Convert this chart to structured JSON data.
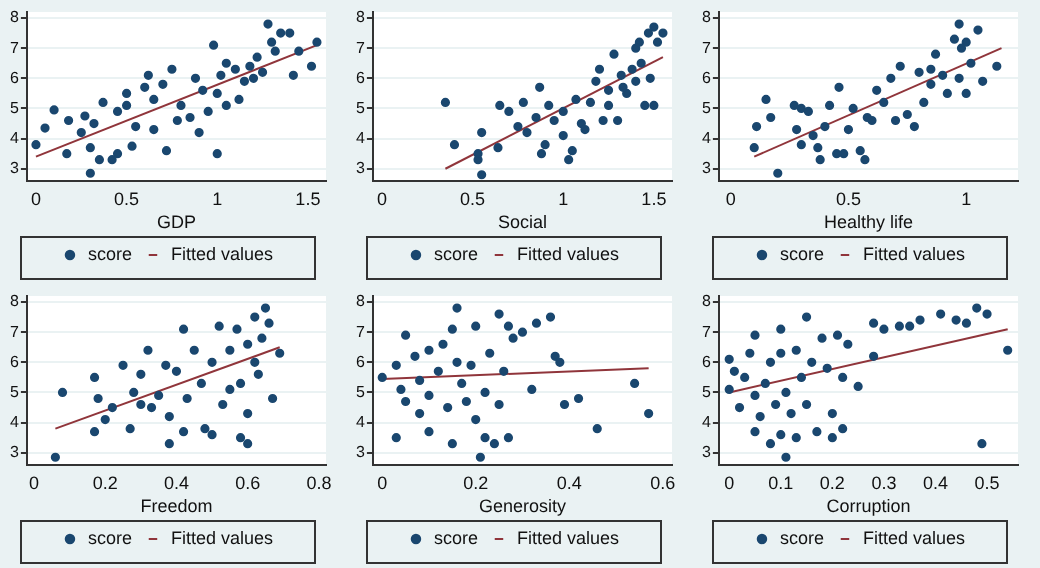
{
  "chart_data": [
    {
      "type": "scatter",
      "xlabel": "GDP",
      "xlim": [
        -0.05,
        1.6
      ],
      "xticks": [
        0,
        0.5,
        1,
        1.5
      ],
      "ylim": [
        2.6,
        8.2
      ],
      "yticks": [
        3,
        4,
        5,
        6,
        7,
        8
      ],
      "grid": "y",
      "legend": "bottom",
      "series": [
        {
          "name": "score",
          "type": "scatter",
          "marker": "circle",
          "color": "#1a476f",
          "x": [
            0,
            0.05,
            0.1,
            0.17,
            0.18,
            0.25,
            0.27,
            0.3,
            0.3,
            0.32,
            0.35,
            0.37,
            0.42,
            0.45,
            0.45,
            0.5,
            0.5,
            0.53,
            0.55,
            0.6,
            0.62,
            0.65,
            0.7,
            0.72,
            0.75,
            0.78,
            0.8,
            0.85,
            0.9,
            0.92,
            0.95,
            0.98,
            1.0,
            1.0,
            1.02,
            1.05,
            1.05,
            1.1,
            1.12,
            1.15,
            1.2,
            1.22,
            1.25,
            1.28,
            1.3,
            1.32,
            1.35,
            1.4,
            1.42,
            1.45,
            1.52,
            1.55,
            0.88,
            0.65,
            1.18
          ],
          "values": [
            3.8,
            4.35,
            4.95,
            3.5,
            4.6,
            4.2,
            4.75,
            2.85,
            3.7,
            4.5,
            3.3,
            5.2,
            3.3,
            3.5,
            4.9,
            5.5,
            5.1,
            3.75,
            4.4,
            5.7,
            6.1,
            4.3,
            5.8,
            3.6,
            6.3,
            4.6,
            5.1,
            4.7,
            4.2,
            5.6,
            4.9,
            7.1,
            3.5,
            5.5,
            6.1,
            6.5,
            5.1,
            6.3,
            5.3,
            5.9,
            6.0,
            6.7,
            6.2,
            7.8,
            7.2,
            6.9,
            7.5,
            7.5,
            6.1,
            6.9,
            6.4,
            7.2,
            6.0,
            5.3,
            6.4
          ]
        },
        {
          "name": "Fitted values",
          "type": "line",
          "color": "#90353b",
          "x": [
            0,
            1.55
          ],
          "values": [
            3.4,
            7.1
          ]
        }
      ]
    },
    {
      "type": "scatter",
      "xlabel": "Social",
      "xlim": [
        -0.05,
        1.6
      ],
      "xticks": [
        0,
        0.5,
        1,
        1.5
      ],
      "ylim": [
        2.6,
        8.2
      ],
      "yticks": [
        3,
        4,
        5,
        6,
        7,
        8
      ],
      "grid": "y",
      "legend": "bottom",
      "series": [
        {
          "name": "score",
          "type": "scatter",
          "marker": "circle",
          "color": "#1a476f",
          "x": [
            0.35,
            0.4,
            0.53,
            0.53,
            0.55,
            0.55,
            0.64,
            0.65,
            0.7,
            0.75,
            0.78,
            0.8,
            0.85,
            0.87,
            0.88,
            0.9,
            0.92,
            0.95,
            1.0,
            1.0,
            1.03,
            1.05,
            1.07,
            1.1,
            1.12,
            1.15,
            1.18,
            1.2,
            1.22,
            1.25,
            1.28,
            1.3,
            1.32,
            1.35,
            1.38,
            1.4,
            1.42,
            1.43,
            1.45,
            1.47,
            1.48,
            1.5,
            1.5,
            1.52,
            1.55,
            1.4,
            1.33,
            1.25
          ],
          "values": [
            5.2,
            3.8,
            3.5,
            3.3,
            2.8,
            4.2,
            3.7,
            5.1,
            4.9,
            4.4,
            5.2,
            4.2,
            4.7,
            5.7,
            3.5,
            3.8,
            5.1,
            4.6,
            4.1,
            4.9,
            3.3,
            3.6,
            5.3,
            4.5,
            4.3,
            5.2,
            5.9,
            6.3,
            4.6,
            5.6,
            6.8,
            4.6,
            6.1,
            5.5,
            6.3,
            5.9,
            7.2,
            6.5,
            5.1,
            7.5,
            6.0,
            7.7,
            5.1,
            7.2,
            7.5,
            7.0,
            5.7,
            5.1
          ]
        },
        {
          "name": "Fitted values",
          "type": "line",
          "color": "#90353b",
          "x": [
            0.35,
            1.55
          ],
          "values": [
            3.0,
            6.7
          ]
        }
      ]
    },
    {
      "type": "scatter",
      "xlabel": "Healthy life",
      "xlim": [
        -0.05,
        1.22
      ],
      "xticks": [
        0,
        0.5,
        1
      ],
      "ylim": [
        2.6,
        8.2
      ],
      "yticks": [
        3,
        4,
        5,
        6,
        7,
        8
      ],
      "grid": "y",
      "legend": "bottom",
      "series": [
        {
          "name": "score",
          "type": "scatter",
          "marker": "circle",
          "color": "#1a476f",
          "x": [
            0.1,
            0.11,
            0.15,
            0.17,
            0.2,
            0.27,
            0.28,
            0.3,
            0.3,
            0.33,
            0.35,
            0.37,
            0.38,
            0.4,
            0.42,
            0.45,
            0.46,
            0.48,
            0.5,
            0.52,
            0.55,
            0.57,
            0.58,
            0.6,
            0.62,
            0.65,
            0.68,
            0.7,
            0.72,
            0.75,
            0.78,
            0.8,
            0.82,
            0.85,
            0.87,
            0.9,
            0.92,
            0.95,
            0.97,
            0.97,
            1.0,
            1.0,
            1.02,
            1.05,
            1.07,
            1.13,
            0.85,
            0.98
          ],
          "values": [
            3.7,
            4.4,
            5.3,
            4.7,
            2.85,
            5.1,
            4.3,
            3.8,
            5.0,
            4.9,
            4.1,
            3.7,
            3.3,
            4.4,
            5.1,
            3.5,
            5.7,
            3.5,
            4.3,
            5.0,
            3.6,
            3.3,
            4.7,
            4.6,
            5.6,
            5.2,
            6.0,
            4.6,
            6.4,
            4.8,
            4.4,
            6.2,
            5.2,
            5.8,
            6.8,
            6.1,
            5.5,
            7.3,
            7.8,
            6.0,
            7.2,
            5.5,
            6.5,
            7.6,
            5.9,
            6.4,
            6.3,
            7.0
          ]
        },
        {
          "name": "Fitted values",
          "type": "line",
          "color": "#90353b",
          "x": [
            0.1,
            1.15
          ],
          "values": [
            3.4,
            7.0
          ]
        }
      ]
    },
    {
      "type": "scatter",
      "xlabel": "Freedom",
      "xlim": [
        -0.02,
        0.82
      ],
      "xticks": [
        0,
        0.2,
        0.4,
        0.6,
        0.8
      ],
      "ylim": [
        2.6,
        8.2
      ],
      "yticks": [
        3,
        4,
        5,
        6,
        7,
        8
      ],
      "grid": "y",
      "legend": "bottom",
      "series": [
        {
          "name": "score",
          "type": "scatter",
          "marker": "circle",
          "color": "#1a476f",
          "x": [
            0.06,
            0.08,
            0.17,
            0.17,
            0.18,
            0.2,
            0.22,
            0.25,
            0.27,
            0.28,
            0.3,
            0.3,
            0.32,
            0.33,
            0.35,
            0.37,
            0.38,
            0.38,
            0.4,
            0.42,
            0.42,
            0.43,
            0.45,
            0.47,
            0.48,
            0.5,
            0.5,
            0.52,
            0.53,
            0.55,
            0.55,
            0.57,
            0.58,
            0.58,
            0.6,
            0.6,
            0.6,
            0.62,
            0.62,
            0.64,
            0.65,
            0.66,
            0.67,
            0.69,
            0.63
          ],
          "values": [
            2.85,
            5.0,
            3.7,
            5.5,
            4.8,
            4.1,
            4.5,
            5.9,
            3.8,
            5.0,
            4.6,
            5.6,
            6.4,
            4.5,
            4.9,
            5.9,
            3.3,
            4.2,
            5.7,
            7.1,
            3.7,
            4.8,
            6.4,
            5.3,
            3.8,
            3.6,
            6.0,
            7.2,
            4.6,
            6.4,
            5.1,
            7.1,
            3.5,
            5.3,
            3.3,
            6.6,
            4.3,
            6.0,
            7.5,
            6.8,
            7.8,
            7.3,
            4.8,
            6.3,
            5.6
          ]
        },
        {
          "name": "Fitted values",
          "type": "line",
          "color": "#90353b",
          "x": [
            0.06,
            0.69
          ],
          "values": [
            3.8,
            6.5
          ]
        }
      ]
    },
    {
      "type": "scatter",
      "xlabel": "Generosity",
      "xlim": [
        -0.02,
        0.62
      ],
      "xticks": [
        0,
        0.2,
        0.4,
        0.6
      ],
      "ylim": [
        2.6,
        8.2
      ],
      "yticks": [
        3,
        4,
        5,
        6,
        7,
        8
      ],
      "grid": "y",
      "legend": "bottom",
      "series": [
        {
          "name": "score",
          "type": "scatter",
          "marker": "circle",
          "color": "#1a476f",
          "x": [
            0,
            0.03,
            0.03,
            0.04,
            0.05,
            0.05,
            0.07,
            0.08,
            0.08,
            0.1,
            0.1,
            0.1,
            0.12,
            0.13,
            0.14,
            0.15,
            0.15,
            0.16,
            0.16,
            0.17,
            0.18,
            0.19,
            0.2,
            0.2,
            0.21,
            0.22,
            0.22,
            0.23,
            0.24,
            0.25,
            0.25,
            0.26,
            0.27,
            0.27,
            0.28,
            0.3,
            0.32,
            0.33,
            0.36,
            0.37,
            0.38,
            0.39,
            0.42,
            0.46,
            0.54,
            0.57
          ],
          "values": [
            5.5,
            3.5,
            5.9,
            5.1,
            6.9,
            4.7,
            6.2,
            4.3,
            5.4,
            4.9,
            6.4,
            3.7,
            5.7,
            6.6,
            4.5,
            3.3,
            7.1,
            6.0,
            7.8,
            5.3,
            4.7,
            5.9,
            4.1,
            7.2,
            2.85,
            3.5,
            5.0,
            6.3,
            3.3,
            7.6,
            4.6,
            5.7,
            3.5,
            7.2,
            6.8,
            7.0,
            5.1,
            7.3,
            7.5,
            6.2,
            6.0,
            4.6,
            4.8,
            3.8,
            5.3,
            4.3
          ]
        },
        {
          "name": "Fitted values",
          "type": "line",
          "color": "#90353b",
          "x": [
            0,
            0.57
          ],
          "values": [
            5.45,
            5.8
          ]
        }
      ]
    },
    {
      "type": "scatter",
      "xlabel": "Corruption",
      "xlim": [
        -0.02,
        0.56
      ],
      "xticks": [
        0,
        0.1,
        0.2,
        0.3,
        0.4,
        0.5
      ],
      "ylim": [
        2.6,
        8.2
      ],
      "yticks": [
        3,
        4,
        5,
        6,
        7,
        8
      ],
      "grid": "y",
      "legend": "bottom",
      "series": [
        {
          "name": "score",
          "type": "scatter",
          "marker": "circle",
          "color": "#1a476f",
          "x": [
            0,
            0,
            0.01,
            0.02,
            0.03,
            0.04,
            0.05,
            0.05,
            0.05,
            0.06,
            0.07,
            0.08,
            0.08,
            0.09,
            0.1,
            0.1,
            0.1,
            0.11,
            0.11,
            0.12,
            0.13,
            0.13,
            0.14,
            0.15,
            0.15,
            0.16,
            0.17,
            0.18,
            0.19,
            0.2,
            0.2,
            0.21,
            0.22,
            0.22,
            0.23,
            0.25,
            0.28,
            0.28,
            0.3,
            0.33,
            0.35,
            0.37,
            0.41,
            0.44,
            0.46,
            0.48,
            0.49,
            0.5,
            0.54
          ],
          "values": [
            5.1,
            6.1,
            5.7,
            4.5,
            5.5,
            6.3,
            3.7,
            6.9,
            4.9,
            4.2,
            5.3,
            6.0,
            3.3,
            4.6,
            7.1,
            3.6,
            6.3,
            2.85,
            5.0,
            4.3,
            6.4,
            3.5,
            5.5,
            7.5,
            4.6,
            6.0,
            3.7,
            6.8,
            5.8,
            4.3,
            3.5,
            6.9,
            3.8,
            5.5,
            6.6,
            5.2,
            7.3,
            6.2,
            7.1,
            7.2,
            7.2,
            7.4,
            7.6,
            7.4,
            7.3,
            7.8,
            3.3,
            7.6,
            6.4
          ]
        },
        {
          "name": "Fitted values",
          "type": "line",
          "color": "#90353b",
          "x": [
            0,
            0.54
          ],
          "values": [
            5.0,
            7.1
          ]
        }
      ]
    }
  ]
}
